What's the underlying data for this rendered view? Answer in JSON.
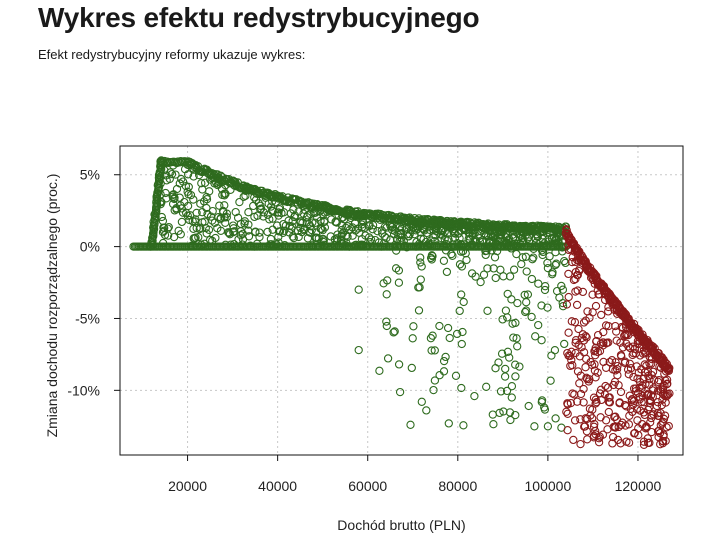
{
  "page": {
    "title": "Wykres efektu redystrybucyjnego",
    "subtitle": "Efekt redystrybucyjny reformy ukazuje wykres:"
  },
  "chart_data": {
    "type": "scatter",
    "title": "",
    "xlabel": "Dochód brutto (PLN)",
    "ylabel": "Zmiana dochodu rozporządzalnego (proc.)",
    "xlim": [
      5000,
      130000
    ],
    "ylim": [
      -14.5,
      7
    ],
    "x_ticks": [
      20000,
      40000,
      60000,
      80000,
      100000,
      120000
    ],
    "x_tick_labels": [
      "20000",
      "40000",
      "60000",
      "80000",
      "100000",
      "120000"
    ],
    "y_ticks": [
      5,
      0,
      -5,
      -10
    ],
    "y_tick_labels": [
      "5%",
      "0%",
      "-5%",
      "-10%"
    ],
    "grid": true,
    "marker": "open-circle",
    "colors": {
      "gain": "#2e6b1e",
      "loss": "#8b1a1a"
    },
    "series": [
      {
        "color_role": "gain",
        "description_points": [
          [
            8000,
            0
          ],
          [
            12000,
            0
          ],
          [
            20000,
            0
          ],
          [
            40000,
            0
          ],
          [
            60000,
            0
          ],
          [
            80000,
            0
          ],
          [
            100000,
            0
          ],
          [
            104000,
            0
          ],
          [
            12000,
            2
          ],
          [
            13000,
            4
          ],
          [
            14000,
            6
          ],
          [
            20000,
            6
          ],
          [
            25000,
            5
          ],
          [
            30000,
            4.3
          ],
          [
            40000,
            3.4
          ],
          [
            50000,
            2.8
          ],
          [
            60000,
            2.3
          ],
          [
            70000,
            1.9
          ],
          [
            80000,
            1.6
          ],
          [
            90000,
            1.4
          ],
          [
            100000,
            1.2
          ],
          [
            104000,
            1.1
          ],
          [
            60000,
            -3
          ],
          [
            58000,
            -7.2
          ],
          [
            66000,
            -5.9
          ],
          [
            72000,
            -10.8
          ],
          [
            78000,
            -12.3
          ],
          [
            85000,
            -8.2
          ],
          [
            92000,
            -10.5
          ],
          [
            97000,
            -12.5
          ],
          [
            100000,
            -12.5
          ],
          [
            101000,
            -10.7
          ],
          [
            103000,
            -12.6
          ]
        ]
      },
      {
        "color_role": "loss",
        "description_points": [
          [
            104000,
            1.1
          ],
          [
            108000,
            -2
          ],
          [
            112000,
            -4
          ],
          [
            116000,
            -5.6
          ],
          [
            120000,
            -7
          ],
          [
            124000,
            -8
          ],
          [
            127000,
            -8.5
          ],
          [
            110000,
            -13.5
          ],
          [
            116000,
            -13.7
          ],
          [
            120000,
            -12.8
          ],
          [
            126000,
            -12.8
          ],
          [
            112000,
            -9.5
          ],
          [
            118000,
            -10.5
          ],
          [
            124000,
            -11.5
          ]
        ]
      }
    ]
  }
}
